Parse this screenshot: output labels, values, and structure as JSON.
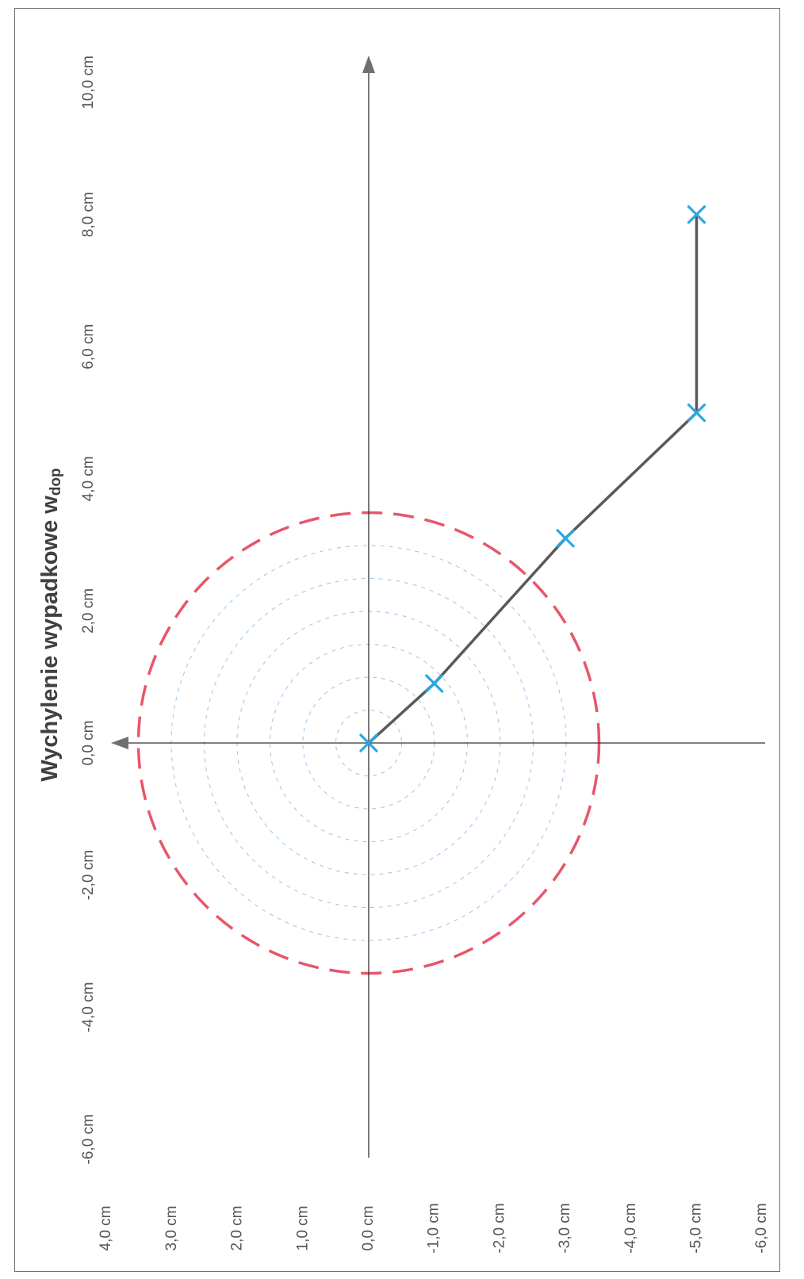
{
  "chart_data": {
    "type": "scatter",
    "title": "Wychylenie wypadkowe w",
    "title_subscript": "dop",
    "axes": {
      "horizontal": {
        "range": [
          -6,
          4
        ],
        "ticks": [
          "-6,0 cm",
          "-5,0 cm",
          "-4,0 cm",
          "-3,0 cm",
          "-2,0 cm",
          "-1,0 cm",
          "0,0 cm",
          "1,0 cm",
          "2,0 cm",
          "3,0 cm",
          "4,0 cm"
        ],
        "tick_values": [
          -6,
          -5,
          -4,
          -3,
          -2,
          -1,
          0,
          1,
          2,
          3,
          4
        ]
      },
      "vertical": {
        "range": [
          -6,
          10
        ],
        "ticks": [
          "-6,0 cm",
          "-4,0 cm",
          "-2,0 cm",
          "0,0 cm",
          "2,0 cm",
          "4,0 cm",
          "6,0 cm",
          "8,0 cm",
          "10,0 cm"
        ],
        "tick_values": [
          -6,
          -4,
          -2,
          0,
          2,
          4,
          6,
          8,
          10
        ]
      }
    },
    "series": [
      {
        "marker": "x",
        "color": "#29a8e0",
        "line_color": "#595959",
        "x": [
          0,
          -1,
          -3,
          -5,
          -5
        ],
        "y": [
          0,
          0.9,
          3.1,
          5.0,
          8.0
        ]
      }
    ],
    "circles": {
      "limit": {
        "radius": 3.5,
        "color": "#e8566a",
        "style": "dashed"
      },
      "guides": {
        "radii": [
          0.5,
          1.0,
          1.5,
          2.0,
          2.5,
          3.0
        ],
        "color": "#9ec3e6",
        "style": "dotted"
      }
    },
    "grid": false,
    "legend": "none"
  }
}
